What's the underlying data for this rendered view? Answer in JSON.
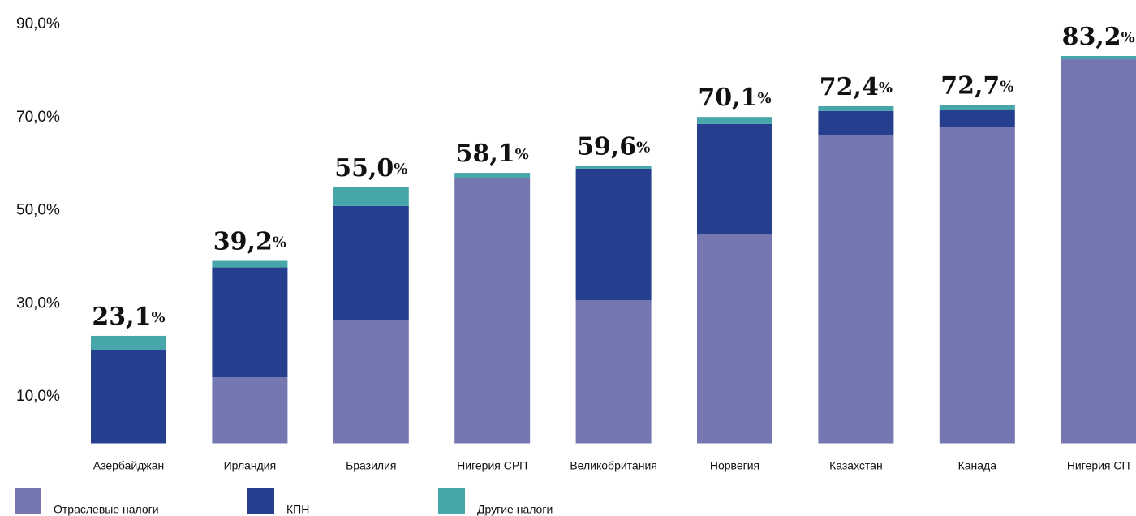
{
  "chart_data": {
    "type": "stacked_bar",
    "categories": [
      "Азербайджан",
      "Ирландия",
      "Бразилия",
      "Нигерия СРП",
      "Великобритания",
      "Норвегия",
      "Казахстан",
      "Канада",
      "Нигерия СП"
    ],
    "series": [
      {
        "name": "Отраслевые налоги",
        "color": "#7577b0",
        "values": [
          0,
          14.2,
          26.5,
          57.0,
          30.7,
          45.0,
          66.2,
          67.9,
          82.5
        ]
      },
      {
        "name": "КПН",
        "color": "#253f8e",
        "values": [
          20.1,
          23.6,
          24.5,
          0,
          28.3,
          23.6,
          5.2,
          3.8,
          0
        ]
      },
      {
        "name": "Другие налоги",
        "color": "#46a6a9",
        "values": [
          3.0,
          1.4,
          4.0,
          1.1,
          0.6,
          1.5,
          1.0,
          1.0,
          0.7
        ]
      }
    ],
    "totals": [
      23.1,
      39.2,
      55.0,
      58.1,
      59.6,
      70.1,
      72.4,
      72.7,
      83.2
    ],
    "total_labels": [
      "23,1%",
      "39,2%",
      "55,0%",
      "58,1%",
      "59,6%",
      "70,1%",
      "72,4%",
      "72,7%",
      "83,2%"
    ],
    "ylim": [
      0,
      90
    ],
    "yticks": [
      {
        "value": 10,
        "label": "10,0%"
      },
      {
        "value": 30,
        "label": "30,0%"
      },
      {
        "value": 50,
        "label": "50,0%"
      },
      {
        "value": 70,
        "label": "70,0%"
      },
      {
        "value": 90,
        "label": "90,0%"
      }
    ],
    "grid": false
  }
}
